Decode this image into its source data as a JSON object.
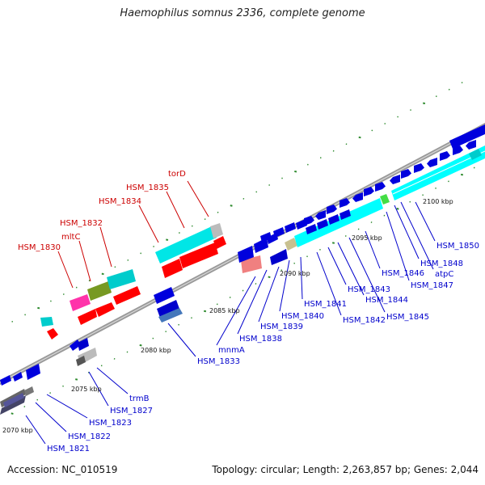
{
  "title": "Haemophilus somnus 2336, complete genome",
  "footer": {
    "accession": "Accession: NC_010519",
    "stats": "Topology: circular; Length: 2,263,857 bp; Genes: 2,044"
  },
  "colors": {
    "label_red": "#cc0000",
    "label_blue": "#0000cc",
    "backbone": "#999999",
    "tick": "#2d8a2d"
  },
  "chart_data": {
    "type": "genome-map",
    "ticks": [
      {
        "label": "2070 kbp",
        "kbp": 2070
      },
      {
        "label": "2075 kbp",
        "kbp": 2075
      },
      {
        "label": "2080 kbp",
        "kbp": 2080
      },
      {
        "label": "2085 kbp",
        "kbp": 2085
      },
      {
        "label": "2090 kbp",
        "kbp": 2090
      },
      {
        "label": "2095 kbp",
        "kbp": 2095
      },
      {
        "label": "2100 kbp",
        "kbp": 2100
      }
    ],
    "genes_above": [
      "HSM_1830",
      "mltC",
      "HSM_1832",
      "HSM_1834",
      "HSM_1835",
      "torD"
    ],
    "genes_below": [
      "HSM_1821",
      "HSM_1822",
      "HSM_1823",
      "HSM_1827",
      "trmB",
      "HSM_1833",
      "mnmA",
      "HSM_1838",
      "HSM_1839",
      "HSM_1840",
      "HSM_1841",
      "HSM_1842",
      "HSM_1843",
      "HSM_1844",
      "HSM_1845",
      "HSM_1846",
      "HSM_1847",
      "HSM_1848",
      "atpC",
      "HSM_1850"
    ]
  }
}
